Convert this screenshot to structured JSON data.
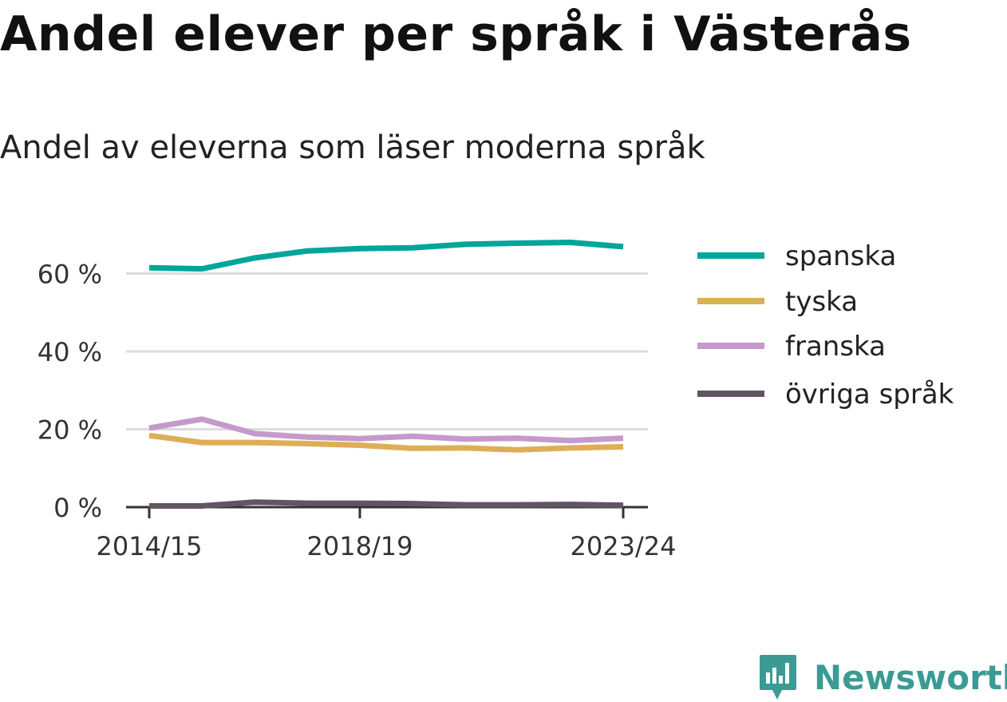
{
  "title": "Andel elever per språk i Västerås",
  "subtitle": "Andel av eleverna som läser moderna språk",
  "brand": {
    "name": "Newsworthy",
    "color": "#3b9b94"
  },
  "chart_data": {
    "type": "line",
    "x": [
      "2014/15",
      "2015/16",
      "2016/17",
      "2017/18",
      "2018/19",
      "2019/20",
      "2020/21",
      "2021/22",
      "2022/23",
      "2023/24"
    ],
    "x_tick_labels": [
      "2014/15",
      "2018/19",
      "2023/24"
    ],
    "y_ticks": [
      0,
      20,
      40,
      60
    ],
    "y_tick_labels": [
      "0 %",
      "20 %",
      "40 %",
      "60 %"
    ],
    "ylim": [
      0,
      70
    ],
    "grid": "horizontal",
    "legend_position": "right",
    "series": [
      {
        "name": "spanska",
        "color": "#00a699",
        "values": [
          61.5,
          61.2,
          64.0,
          65.8,
          66.4,
          66.6,
          67.5,
          67.8,
          68.0,
          66.9
        ]
      },
      {
        "name": "tyska",
        "color": "#deae57",
        "values": [
          18.4,
          16.6,
          16.6,
          16.3,
          15.9,
          15.1,
          15.2,
          14.7,
          15.2,
          15.5
        ]
      },
      {
        "name": "franska",
        "color": "#c59acb",
        "values": [
          20.3,
          22.6,
          18.9,
          18.0,
          17.6,
          18.2,
          17.5,
          17.7,
          17.1,
          17.7
        ]
      },
      {
        "name": "övriga språk",
        "color": "#625563",
        "values": [
          0.3,
          0.3,
          1.3,
          1.0,
          1.0,
          0.9,
          0.6,
          0.6,
          0.7,
          0.5
        ]
      }
    ]
  }
}
